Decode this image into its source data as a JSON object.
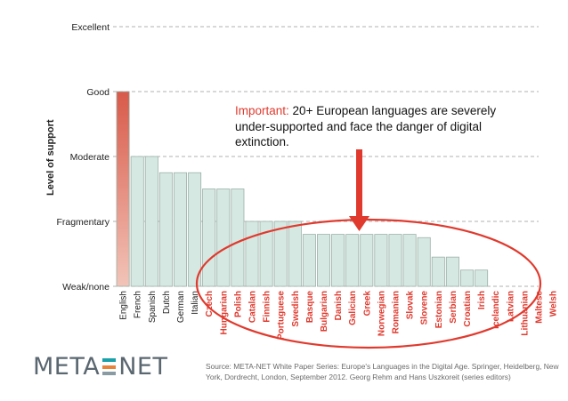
{
  "chart_data": {
    "type": "bar",
    "ylabel": "Level of support",
    "levels": [
      "Weak/none",
      "Fragmentary",
      "Moderate",
      "Good",
      "Excellent"
    ],
    "ylim": [
      0,
      4
    ],
    "categories": [
      "English",
      "French",
      "Spanish",
      "Dutch",
      "German",
      "Italian",
      "Czech",
      "Hungarian",
      "Polish",
      "Catalan",
      "Finnish",
      "Portuguese",
      "Swedish",
      "Basque",
      "Bulgarian",
      "Danish",
      "Galician",
      "Greek",
      "Norwegian",
      "Romanian",
      "Slovak",
      "Slovene",
      "Estonian",
      "Serbian",
      "Croatian",
      "Irish",
      "Icelandic",
      "Latvian",
      "Lithuanian",
      "Maltese",
      "Welsh"
    ],
    "values": [
      3.0,
      2.0,
      2.0,
      1.75,
      1.75,
      1.75,
      1.5,
      1.5,
      1.5,
      1.0,
      1.0,
      1.0,
      1.0,
      0.8,
      0.8,
      0.8,
      0.8,
      0.8,
      0.8,
      0.8,
      0.8,
      0.75,
      0.45,
      0.45,
      0.25,
      0.25,
      0.0,
      0.0,
      0.0,
      0.0,
      0.0
    ],
    "highlighted_from": "Czech",
    "grid": true,
    "colors": {
      "bar_fill": "#d6e8e2",
      "bar_stroke": "#9bb0a8",
      "top_bar_fill": "#d85a4a",
      "highlight_label": "#e03a2e",
      "default_label": "#222222",
      "grid": "#999999",
      "ellipse": "#e03a2e",
      "arrow": "#e03a2e"
    }
  },
  "callout": {
    "highlight": "Important:",
    "text": "20+ European languages are severely under-supported and face the danger of digital extinction."
  },
  "logo": {
    "left": "META",
    "right": "NET",
    "colors": [
      "#1aa0a8",
      "#e8843a",
      "#8a9aa2"
    ]
  },
  "source": "Source: META-NET White Paper Series: Europe's Languages in the Digital Age. Springer, Heidelberg, New York, Dordrecht, London, September 2012. Georg Rehm and Hans Uszkoreit (series editors)"
}
